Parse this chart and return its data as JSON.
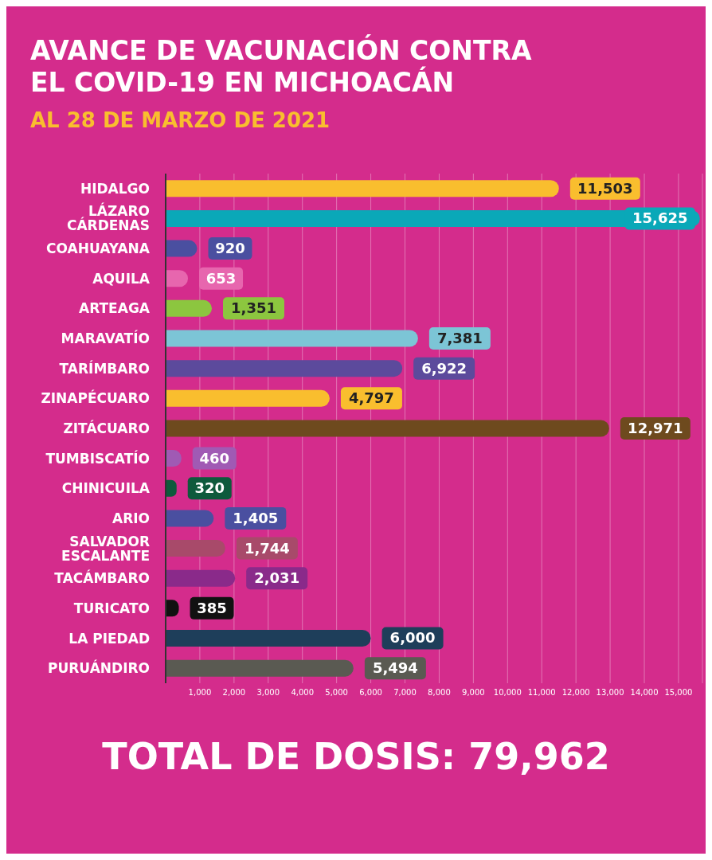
{
  "chart_data": {
    "type": "bar",
    "orientation": "horizontal",
    "title": "AVANCE DE VACUNACIÓN CONTRA EL COVID-19 EN MICHOACÁN",
    "subtitle": "AL 28 DE MARZO DE 2021",
    "categories": [
      "HIDALGO",
      "LÁZARO CÁRDENAS",
      "COAHUAYANA",
      "AQUILA",
      "ARTEAGA",
      "MARAVATÍO",
      "TARÍMBARO",
      "ZINAPÉCUARO",
      "ZITÁCUARO",
      "TUMBISCATÍO",
      "CHINICUILA",
      "ARIO",
      "SALVADOR ESCALANTE",
      "TACÁMBARO",
      "TURICATO",
      "LA PIEDAD",
      "PURUÁNDIRO"
    ],
    "values": [
      11503,
      15625,
      920,
      653,
      1351,
      7381,
      6922,
      4797,
      12971,
      460,
      320,
      1405,
      1744,
      2031,
      385,
      6000,
      5494
    ],
    "value_labels": [
      "11,503",
      "15,625",
      "920",
      "653",
      "1,351",
      "7,381",
      "6,922",
      "4,797",
      "12,971",
      "460",
      "320",
      "1,405",
      "1,744",
      "2,031",
      "385",
      "6,000",
      "5,494"
    ],
    "colors": [
      "#f9be2e",
      "#0aa8b8",
      "#4a4fa0",
      "#e766ae",
      "#8cc63f",
      "#7cc5d6",
      "#5c4a9c",
      "#f9be2e",
      "#6e4a1e",
      "#a05ab4",
      "#0e5a3c",
      "#4a4fa0",
      "#a84a6a",
      "#8a2a8a",
      "#111111",
      "#1e3e5a",
      "#5a5a52"
    ],
    "xlim": [
      0,
      15700
    ],
    "xticks": [
      {
        "value": 1000,
        "label": "1,000"
      },
      {
        "value": 2000,
        "label": "2,000"
      },
      {
        "value": 3000,
        "label": "3,000"
      },
      {
        "value": 4000,
        "label": "4,000"
      },
      {
        "value": 5000,
        "label": "5,000"
      },
      {
        "value": 6000,
        "label": "6,000"
      },
      {
        "value": 7000,
        "label": "7,000"
      },
      {
        "value": 8000,
        "label": "8,000"
      },
      {
        "value": 9000,
        "label": "9,000"
      },
      {
        "value": 10000,
        "label": "10,000"
      },
      {
        "value": 11000,
        "label": "11,000"
      },
      {
        "value": 12000,
        "label": "12,000"
      },
      {
        "value": 13000,
        "label": "13,000"
      },
      {
        "value": 14000,
        "label": "14,000"
      },
      {
        "value": 15000,
        "label": "15,000"
      }
    ],
    "grid": "x",
    "legend": false,
    "annotations": [
      "TOTAL DE DOSIS: 79,962"
    ]
  }
}
